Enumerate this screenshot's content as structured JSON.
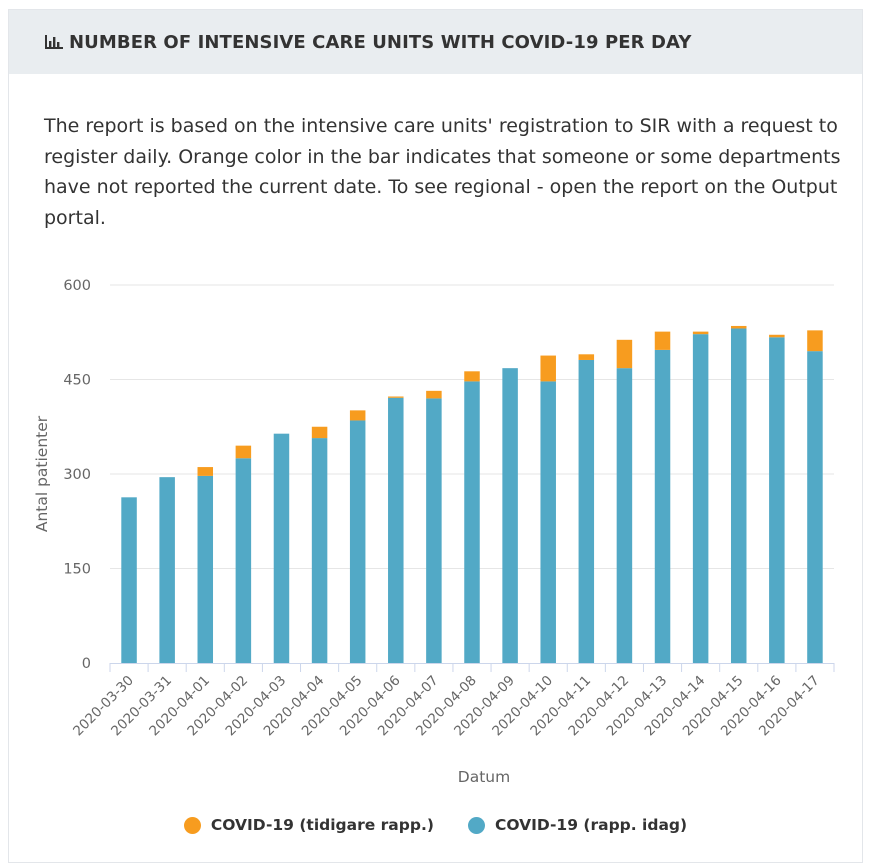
{
  "header": {
    "title": "NUMBER OF INTENSIVE CARE UNITS WITH COVID-19 PER DAY",
    "icon": "bar-chart-icon"
  },
  "description": "The report is based on the intensive care units' registration to SIR with a request to register daily. Orange color in the bar indicates that someone or some departments have not reported the current date. To see regional - open the report on the Output portal.",
  "colors": {
    "reported_today": "#52a9c6",
    "reported_earlier": "#f79c1f"
  },
  "chart_data": {
    "type": "bar",
    "stacked": true,
    "xlabel": "Datum",
    "ylabel": "Antal patienter",
    "ylim": [
      0,
      600
    ],
    "yticks": [
      0,
      150,
      300,
      450,
      600
    ],
    "grid": true,
    "legend_position": "bottom",
    "categories": [
      "2020-03-30",
      "2020-03-31",
      "2020-04-01",
      "2020-04-02",
      "2020-04-03",
      "2020-04-04",
      "2020-04-05",
      "2020-04-06",
      "2020-04-07",
      "2020-04-08",
      "2020-04-09",
      "2020-04-10",
      "2020-04-11",
      "2020-04-12",
      "2020-04-13",
      "2020-04-14",
      "2020-04-15",
      "2020-04-16",
      "2020-04-17"
    ],
    "series": [
      {
        "name": "COVID-19 (rapp. idag)",
        "values": [
          263,
          295,
          297,
          325,
          364,
          357,
          385,
          421,
          420,
          447,
          468,
          447,
          481,
          468,
          497,
          522,
          531,
          517,
          495
        ]
      },
      {
        "name": "COVID-19 (tidigare rapp.)",
        "values": [
          0,
          0,
          14,
          20,
          0,
          18,
          16,
          2,
          12,
          16,
          0,
          41,
          9,
          45,
          29,
          4,
          4,
          4,
          33
        ]
      }
    ]
  },
  "legend": {
    "items": [
      {
        "label": "COVID-19 (tidigare rapp.)",
        "color": "#f79c1f"
      },
      {
        "label": "COVID-19 (rapp. idag)",
        "color": "#52a9c6"
      }
    ]
  }
}
